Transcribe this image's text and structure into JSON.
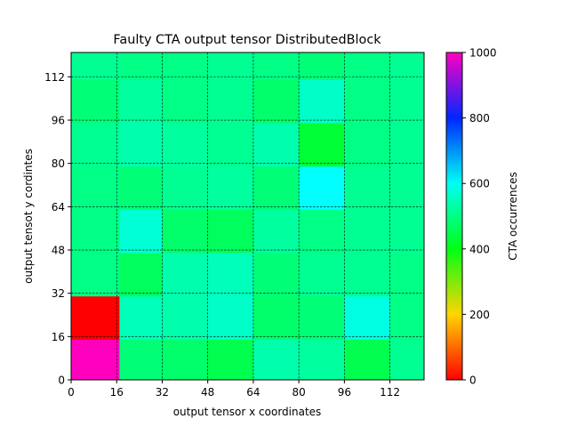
{
  "chart_data": {
    "type": "heatmap",
    "title": "Faulty CTA output tensor DistributedBlock",
    "xlabel": "output tensor x coordinates",
    "ylabel": "output tensot y cordintes",
    "colorbar_label": "CTA occurrences",
    "colormap": "gist_rainbow-like (red=0 → magenta=1000)",
    "xlim": [
      0,
      124
    ],
    "ylim": [
      0,
      121
    ],
    "x_edges": [
      0,
      17,
      32,
      48,
      64,
      80,
      96,
      112,
      124
    ],
    "y_edges": [
      0,
      15,
      31,
      47,
      63,
      79,
      95,
      111,
      121
    ],
    "xticks": [
      0,
      16,
      32,
      48,
      64,
      80,
      96,
      112
    ],
    "yticks": [
      0,
      16,
      32,
      48,
      64,
      80,
      96,
      112
    ],
    "grid": true,
    "grid_style": "dashed black",
    "clim": [
      0,
      1000
    ],
    "colorbar_ticks": [
      0,
      200,
      400,
      600,
      800,
      1000
    ],
    "values_rows_bottom_to_top": [
      [
        1000,
        470,
        460,
        440,
        510,
        500,
        440,
        490
      ],
      [
        0,
        520,
        510,
        530,
        460,
        470,
        550,
        480
      ],
      [
        480,
        450,
        510,
        520,
        470,
        490,
        490,
        480
      ],
      [
        480,
        540,
        460,
        450,
        500,
        480,
        490,
        490
      ],
      [
        480,
        470,
        490,
        500,
        470,
        570,
        490,
        490
      ],
      [
        490,
        510,
        500,
        490,
        510,
        420,
        480,
        490
      ],
      [
        470,
        500,
        480,
        490,
        460,
        530,
        480,
        490
      ],
      [
        490,
        480,
        480,
        490,
        480,
        470,
        480,
        490
      ]
    ]
  }
}
